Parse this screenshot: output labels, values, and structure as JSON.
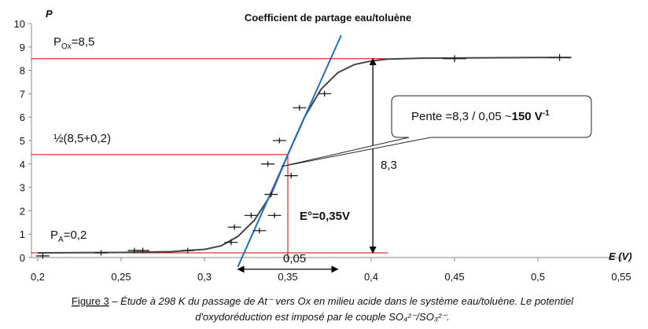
{
  "chart_data": {
    "type": "scatter",
    "title": "Coefficient de partage eau/toluène",
    "y_label": "P",
    "x_label": "E (V)",
    "xlim": [
      0.2,
      0.55
    ],
    "ylim": [
      0,
      10
    ],
    "xticks": [
      {
        "value": 0.2,
        "label": "0,2"
      },
      {
        "value": 0.25,
        "label": "0,25"
      },
      {
        "value": 0.3,
        "label": "0,3"
      },
      {
        "value": 0.35,
        "label": "0,35"
      },
      {
        "value": 0.4,
        "label": "0,4"
      },
      {
        "value": 0.45,
        "label": "0,45"
      },
      {
        "value": 0.5,
        "label": "0,5"
      },
      {
        "value": 0.55,
        "label": "0,55"
      }
    ],
    "yticks": [
      0,
      1,
      2,
      3,
      4,
      5,
      6,
      7,
      8,
      9,
      10
    ],
    "points": {
      "color": "#222222",
      "x": [
        0.203,
        0.238,
        0.258,
        0.263,
        0.29,
        0.316,
        0.318,
        0.328,
        0.333,
        0.342,
        0.34,
        0.338,
        0.345,
        0.352,
        0.357,
        0.372,
        0.45,
        0.513
      ],
      "y": [
        0.07,
        0.2,
        0.3,
        0.3,
        0.3,
        0.65,
        1.3,
        1.8,
        1.15,
        1.8,
        2.7,
        4.0,
        5.0,
        3.5,
        6.4,
        7.0,
        8.5,
        8.55
      ],
      "xerr": [
        0.004,
        0.004,
        0.004,
        0.004,
        0.004,
        0.004,
        0.004,
        0.004,
        0.004,
        0.004,
        0.004,
        0.004,
        0.004,
        0.004,
        0.004,
        0.004,
        0.007,
        0.007
      ],
      "yerr": [
        0.12,
        0.12,
        0.12,
        0.12,
        0.12,
        0.12,
        0.12,
        0.12,
        0.12,
        0.12,
        0.12,
        0.12,
        0.12,
        0.12,
        0.12,
        0.12,
        0.15,
        0.15
      ]
    },
    "fit": {
      "color": "#444444",
      "x": [
        0.2,
        0.25,
        0.28,
        0.3,
        0.31,
        0.32,
        0.33,
        0.34,
        0.35,
        0.36,
        0.37,
        0.38,
        0.39,
        0.4,
        0.41,
        0.43,
        0.5,
        0.52
      ],
      "y": [
        0.2,
        0.22,
        0.25,
        0.35,
        0.5,
        0.9,
        1.6,
        2.7,
        4.4,
        6.0,
        7.2,
        7.9,
        8.25,
        8.4,
        8.48,
        8.52,
        8.55,
        8.55
      ]
    },
    "tangent": {
      "color": "#1f6fc4",
      "x": [
        0.32,
        0.382
      ],
      "y": [
        -0.4,
        9.5
      ]
    },
    "reference_lines": {
      "color": "#d40000",
      "lines": [
        {
          "x": [
            0.196,
            0.41
          ],
          "y": [
            8.5,
            8.5
          ]
        },
        {
          "x": [
            0.196,
            0.35
          ],
          "y": [
            4.4,
            4.4
          ]
        },
        {
          "x": [
            0.196,
            0.41
          ],
          "y": [
            0.2,
            0.2
          ]
        },
        {
          "x": [
            0.35,
            0.35
          ],
          "y": [
            0,
            4.4
          ]
        }
      ]
    },
    "arrows": [
      {
        "x": [
          0.401,
          0.401
        ],
        "y": [
          0.2,
          8.5
        ]
      },
      {
        "x": [
          0.32,
          0.38
        ],
        "y": [
          -0.5,
          -0.5
        ]
      }
    ],
    "annotations": {
      "p_ox": {
        "base": "P",
        "sub": "Ox",
        "text": "=8,5"
      },
      "half": "½(8,5+0,2)",
      "p_a": {
        "base": "P",
        "sub": "A",
        "text": "=0,2"
      },
      "delta_p": "8,3",
      "e0": "E°=0,35V",
      "delta_e": "0,05",
      "slope": {
        "text": "Pente =8,3 / 0,05 ~",
        "bold": "150 V",
        "sup": "-1"
      }
    },
    "caption": {
      "label": "Figure 3",
      "lines": [
        "– Étude à 298 K du passage de At⁻ vers Ox en milieu acide dans le système eau/toluène. Le potentiel",
        "d'oxydoréduction est imposé par le couple SO₄²⁻/SO₃²⁻."
      ]
    }
  }
}
